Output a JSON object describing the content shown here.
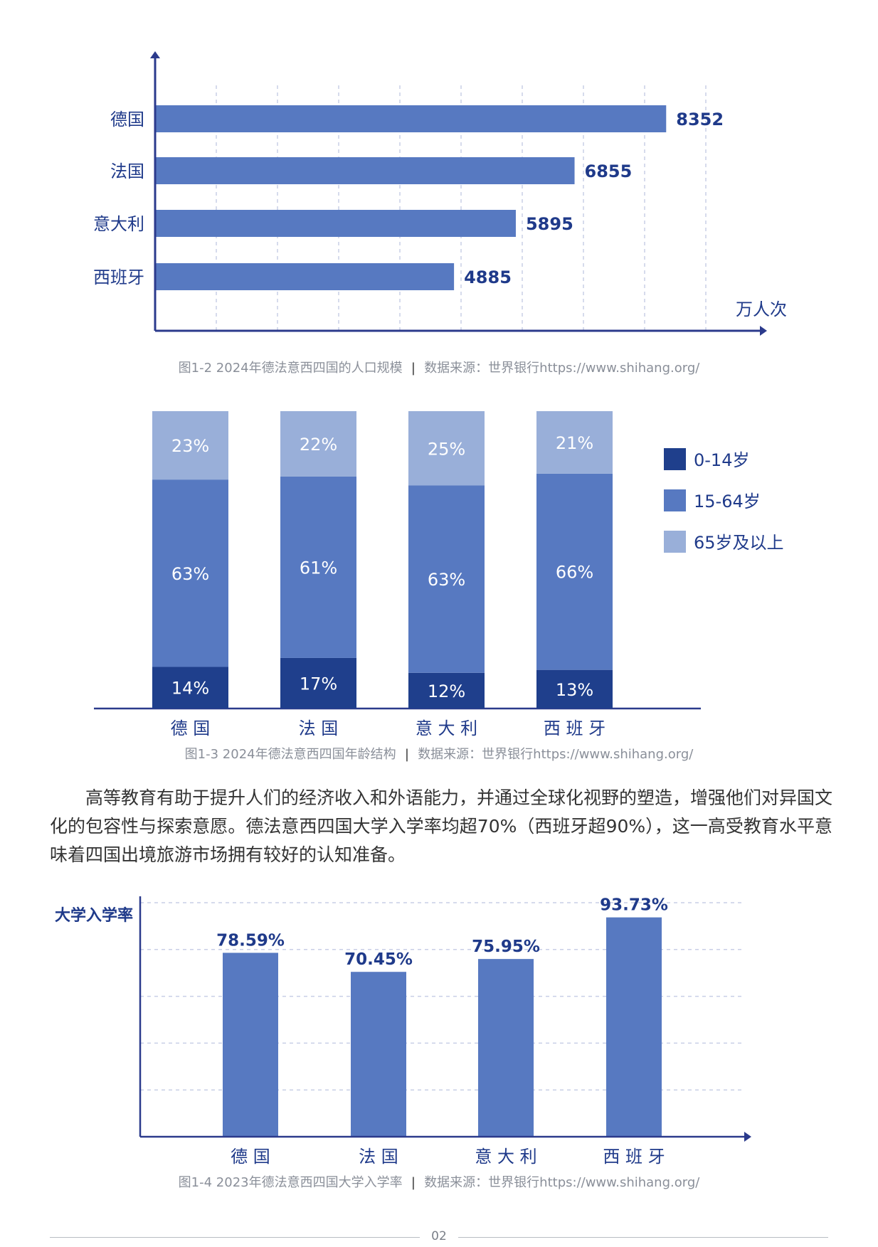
{
  "chart_data": [
    {
      "type": "bar",
      "orientation": "horizontal",
      "categories": [
        "德国",
        "法国",
        "意大利",
        "西班牙"
      ],
      "values": [
        8352,
        6855,
        5895,
        4885
      ],
      "unit_label": "万人次",
      "xlim": [
        0,
        10000
      ],
      "grid": "vertical-dashed",
      "bar_color": "#5779c1"
    },
    {
      "type": "bar",
      "stacked": true,
      "percent": true,
      "categories": [
        "德 国",
        "法 国",
        "意 大 利",
        "西 班 牙"
      ],
      "series": [
        {
          "name": "0-14岁",
          "values": [
            14,
            17,
            12,
            13
          ],
          "labels": [
            "14%",
            "17%",
            "12%",
            "13%"
          ],
          "color": "#1f3f8c"
        },
        {
          "name": "15-64岁",
          "values": [
            63,
            61,
            63,
            66
          ],
          "labels": [
            "63%",
            "61%",
            "63%",
            "66%"
          ],
          "color": "#5779c1"
        },
        {
          "name": "65岁及以上",
          "values": [
            23,
            22,
            25,
            21
          ],
          "labels": [
            "23%",
            "22%",
            "25%",
            "21%"
          ],
          "color": "#99afd9"
        }
      ],
      "legend": "right"
    },
    {
      "type": "bar",
      "categories": [
        "德 国",
        "法 国",
        "意 大 利",
        "西 班 牙"
      ],
      "values": [
        78.59,
        70.45,
        75.95,
        93.73
      ],
      "labels": [
        "78.59%",
        "70.45%",
        "75.95%",
        "93.73%"
      ],
      "ylabel": "大学入学率",
      "ylim": [
        0,
        100
      ],
      "grid": "horizontal-dashed",
      "bar_color": "#5779c1"
    }
  ],
  "captions": {
    "fig2_title": "图1-2 2024年德法意西四国的人口规模",
    "fig3_title": "图1-3 2024年德法意西四国年龄结构",
    "fig4_title": "图1-4 2023年德法意西四国大学入学率",
    "separator": "|",
    "source": "数据来源：世界银行https://www.shihang.org/"
  },
  "paragraph": "高等教育有助于提升人们的经济收入和外语能力，并通过全球化视野的塑造，增强他们对异国文化的包容性与探索意愿。德法意西四国大学入学率均超70%（西班牙超90%），这一高受教育水平意味着四国出境旅游市场拥有较好的认知准备。",
  "page_number": "02",
  "colors": {
    "axis": "#2b3a8c",
    "label_blue": "#1f3a8a",
    "grid": "#c8cfe6",
    "bar": "#5779c1"
  }
}
